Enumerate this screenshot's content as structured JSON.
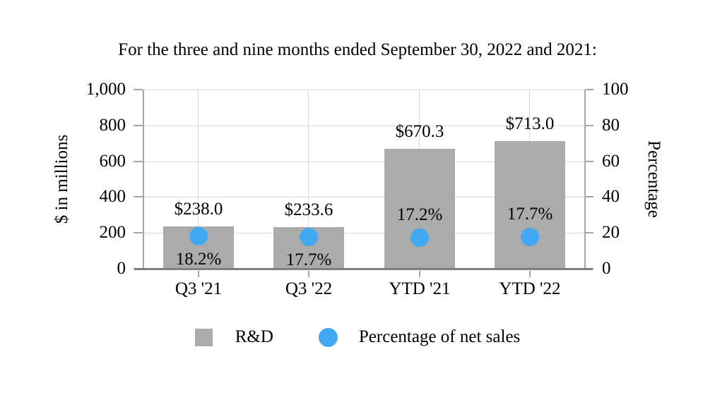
{
  "chart_data": {
    "type": "bar",
    "title": "For the three and nine months ended September 30, 2022 and 2021:",
    "categories": [
      "Q3 '21",
      "Q3 '22",
      "YTD '21",
      "YTD '22"
    ],
    "series": [
      {
        "name": "R&D",
        "type": "bar",
        "axis": "left",
        "color": "#ababab",
        "values": [
          238.0,
          233.6,
          670.3,
          713.0
        ],
        "data_labels": [
          "$238.0",
          "$233.6",
          "$670.3",
          "$713.0"
        ]
      },
      {
        "name": "Percentage of net sales",
        "type": "scatter",
        "axis": "right",
        "color": "#41a9f4",
        "values": [
          18.2,
          17.7,
          17.2,
          17.7
        ],
        "data_labels": [
          "18.2%",
          "17.7%",
          "17.2%",
          "17.7%"
        ],
        "label_placement": [
          "below",
          "below",
          "above",
          "above"
        ]
      }
    ],
    "left_axis": {
      "title": "$ in millions",
      "range": [
        0,
        1000
      ],
      "tick_labels": [
        "0",
        "200",
        "400",
        "600",
        "800",
        "1,000"
      ],
      "tick_values": [
        0,
        200,
        400,
        600,
        800,
        1000
      ]
    },
    "right_axis": {
      "title": "Percentage",
      "range": [
        0,
        100
      ],
      "tick_labels": [
        "0",
        "20",
        "40",
        "60",
        "80",
        "100"
      ],
      "tick_values": [
        0,
        20,
        40,
        60,
        80,
        100
      ]
    },
    "grid": {
      "horizontal": true,
      "vertical": true
    },
    "legend": {
      "position": "bottom",
      "items": [
        {
          "label": "R&D",
          "swatch": "square",
          "color": "#ababab"
        },
        {
          "label": "Percentage of net sales",
          "swatch": "circle",
          "color": "#41a9f4"
        }
      ]
    },
    "colors": {
      "grid": "#d9d9d9",
      "axis": "#a6a6a6",
      "baseline": "#7f7f7f",
      "text": "#000000"
    }
  }
}
